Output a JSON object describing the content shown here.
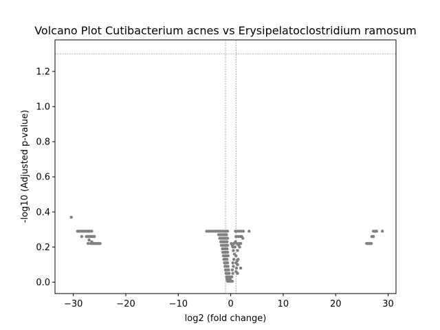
{
  "chart_data": {
    "type": "scatter",
    "title": "Volcano Plot Cutibacterium acnes vs Erysipelatoclostridium ramosum",
    "xlabel": "log2 (fold change)",
    "ylabel": "-log10 (Adjusted p-value)",
    "xlim": [
      -33.5,
      31.5
    ],
    "ylim": [
      -0.065,
      1.38
    ],
    "xticks": [
      -30,
      -20,
      -10,
      0,
      10,
      20,
      30
    ],
    "yticks": [
      0.0,
      0.2,
      0.4,
      0.6,
      0.8,
      1.0,
      1.2
    ],
    "point_color": "#808080",
    "threshold_color": "#808080",
    "thresholds": {
      "x": [
        -1,
        1
      ],
      "y": [
        1.301
      ]
    },
    "grid": false,
    "legend": "none",
    "points": [
      [
        -30.4,
        0.37
      ],
      [
        -29.2,
        0.29
      ],
      [
        -28.9,
        0.29
      ],
      [
        -28.6,
        0.29
      ],
      [
        -28.3,
        0.29
      ],
      [
        -28.0,
        0.29
      ],
      [
        -27.7,
        0.29
      ],
      [
        -27.4,
        0.29
      ],
      [
        -27.1,
        0.29
      ],
      [
        -26.8,
        0.29
      ],
      [
        -26.5,
        0.29
      ],
      [
        -28.4,
        0.26
      ],
      [
        -27.5,
        0.26
      ],
      [
        -27.2,
        0.26
      ],
      [
        -26.9,
        0.26
      ],
      [
        -26.6,
        0.26
      ],
      [
        -26.3,
        0.26
      ],
      [
        -26.0,
        0.26
      ],
      [
        -27.0,
        0.24
      ],
      [
        -26.5,
        0.23
      ],
      [
        -27.2,
        0.22
      ],
      [
        -26.7,
        0.22
      ],
      [
        -26.4,
        0.22
      ],
      [
        -26.1,
        0.22
      ],
      [
        -25.8,
        0.22
      ],
      [
        -25.5,
        0.22
      ],
      [
        -25.2,
        0.22
      ],
      [
        -24.9,
        0.22
      ],
      [
        -4.6,
        0.29
      ],
      [
        -4.2,
        0.29
      ],
      [
        -3.8,
        0.29
      ],
      [
        -3.4,
        0.29
      ],
      [
        -3.0,
        0.29
      ],
      [
        -2.7,
        0.29
      ],
      [
        -2.4,
        0.29
      ],
      [
        -2.1,
        0.29
      ],
      [
        -1.8,
        0.29
      ],
      [
        -1.5,
        0.29
      ],
      [
        -1.2,
        0.29
      ],
      [
        -0.9,
        0.29
      ],
      [
        -0.6,
        0.29
      ],
      [
        -2.3,
        0.27
      ],
      [
        -2.0,
        0.27
      ],
      [
        -1.7,
        0.27
      ],
      [
        -1.4,
        0.27
      ],
      [
        -1.1,
        0.27
      ],
      [
        -0.8,
        0.27
      ],
      [
        -2.1,
        0.25
      ],
      [
        -1.8,
        0.25
      ],
      [
        -1.5,
        0.25
      ],
      [
        -1.2,
        0.25
      ],
      [
        -0.9,
        0.25
      ],
      [
        -0.6,
        0.25
      ],
      [
        -1.9,
        0.23
      ],
      [
        -1.6,
        0.23
      ],
      [
        -1.3,
        0.23
      ],
      [
        -1.0,
        0.23
      ],
      [
        -0.7,
        0.23
      ],
      [
        -1.8,
        0.21
      ],
      [
        -1.5,
        0.21
      ],
      [
        -1.2,
        0.21
      ],
      [
        -0.9,
        0.21
      ],
      [
        -0.6,
        0.21
      ],
      [
        -1.6,
        0.19
      ],
      [
        -1.3,
        0.19
      ],
      [
        -1.0,
        0.19
      ],
      [
        -0.7,
        0.19
      ],
      [
        -1.5,
        0.17
      ],
      [
        -1.2,
        0.17
      ],
      [
        -0.9,
        0.17
      ],
      [
        -0.6,
        0.17
      ],
      [
        -1.4,
        0.15
      ],
      [
        -1.1,
        0.15
      ],
      [
        -0.8,
        0.15
      ],
      [
        -0.5,
        0.15
      ],
      [
        -1.3,
        0.13
      ],
      [
        -1.0,
        0.13
      ],
      [
        -0.7,
        0.13
      ],
      [
        -1.2,
        0.11
      ],
      [
        -0.9,
        0.11
      ],
      [
        -0.6,
        0.11
      ],
      [
        -1.1,
        0.09
      ],
      [
        -0.8,
        0.09
      ],
      [
        -0.5,
        0.09
      ],
      [
        -1.0,
        0.07
      ],
      [
        -0.7,
        0.07
      ],
      [
        -0.4,
        0.07
      ],
      [
        -0.9,
        0.05
      ],
      [
        -0.6,
        0.05
      ],
      [
        -0.3,
        0.05
      ],
      [
        -0.8,
        0.03
      ],
      [
        -0.5,
        0.03
      ],
      [
        -0.2,
        0.03
      ],
      [
        -0.7,
        0.015
      ],
      [
        -0.4,
        0.015
      ],
      [
        -0.1,
        0.015
      ],
      [
        -0.6,
        0.005
      ],
      [
        -0.3,
        0.005
      ],
      [
        0.0,
        0.005
      ],
      [
        0.3,
        0.005
      ],
      [
        0.2,
        0.03
      ],
      [
        0.4,
        0.05
      ],
      [
        0.3,
        0.07
      ],
      [
        0.5,
        0.09
      ],
      [
        0.4,
        0.11
      ],
      [
        0.6,
        0.13
      ],
      [
        0.7,
        0.16
      ],
      [
        0.5,
        0.18
      ],
      [
        0.8,
        0.2
      ],
      [
        0.6,
        0.22
      ],
      [
        0.9,
        0.23
      ],
      [
        0.9,
        0.29
      ],
      [
        1.2,
        0.29
      ],
      [
        1.6,
        0.29
      ],
      [
        2.0,
        0.29
      ],
      [
        2.4,
        0.29
      ],
      [
        3.5,
        0.29
      ],
      [
        1.0,
        0.26
      ],
      [
        1.4,
        0.26
      ],
      [
        1.8,
        0.26
      ],
      [
        2.1,
        0.26
      ],
      [
        2.3,
        0.25
      ],
      [
        1.2,
        0.22
      ],
      [
        1.6,
        0.22
      ],
      [
        1.9,
        0.22
      ],
      [
        1.5,
        0.21
      ],
      [
        1.7,
        0.2
      ],
      [
        1.3,
        0.18
      ],
      [
        1.0,
        0.15
      ],
      [
        1.4,
        0.13
      ],
      [
        1.2,
        0.12
      ],
      [
        1.0,
        0.11
      ],
      [
        1.3,
        0.1
      ],
      [
        1.9,
        0.08
      ],
      [
        1.1,
        0.08
      ],
      [
        1.0,
        0.06
      ],
      [
        1.3,
        0.05
      ],
      [
        0.1,
        0.22
      ],
      [
        0.3,
        0.21
      ],
      [
        0.4,
        0.2
      ],
      [
        27.2,
        0.29
      ],
      [
        27.5,
        0.29
      ],
      [
        27.8,
        0.29
      ],
      [
        28.9,
        0.29
      ],
      [
        26.9,
        0.26
      ],
      [
        27.2,
        0.26
      ],
      [
        25.9,
        0.22
      ],
      [
        26.2,
        0.22
      ],
      [
        26.5,
        0.22
      ],
      [
        26.8,
        0.22
      ]
    ]
  }
}
